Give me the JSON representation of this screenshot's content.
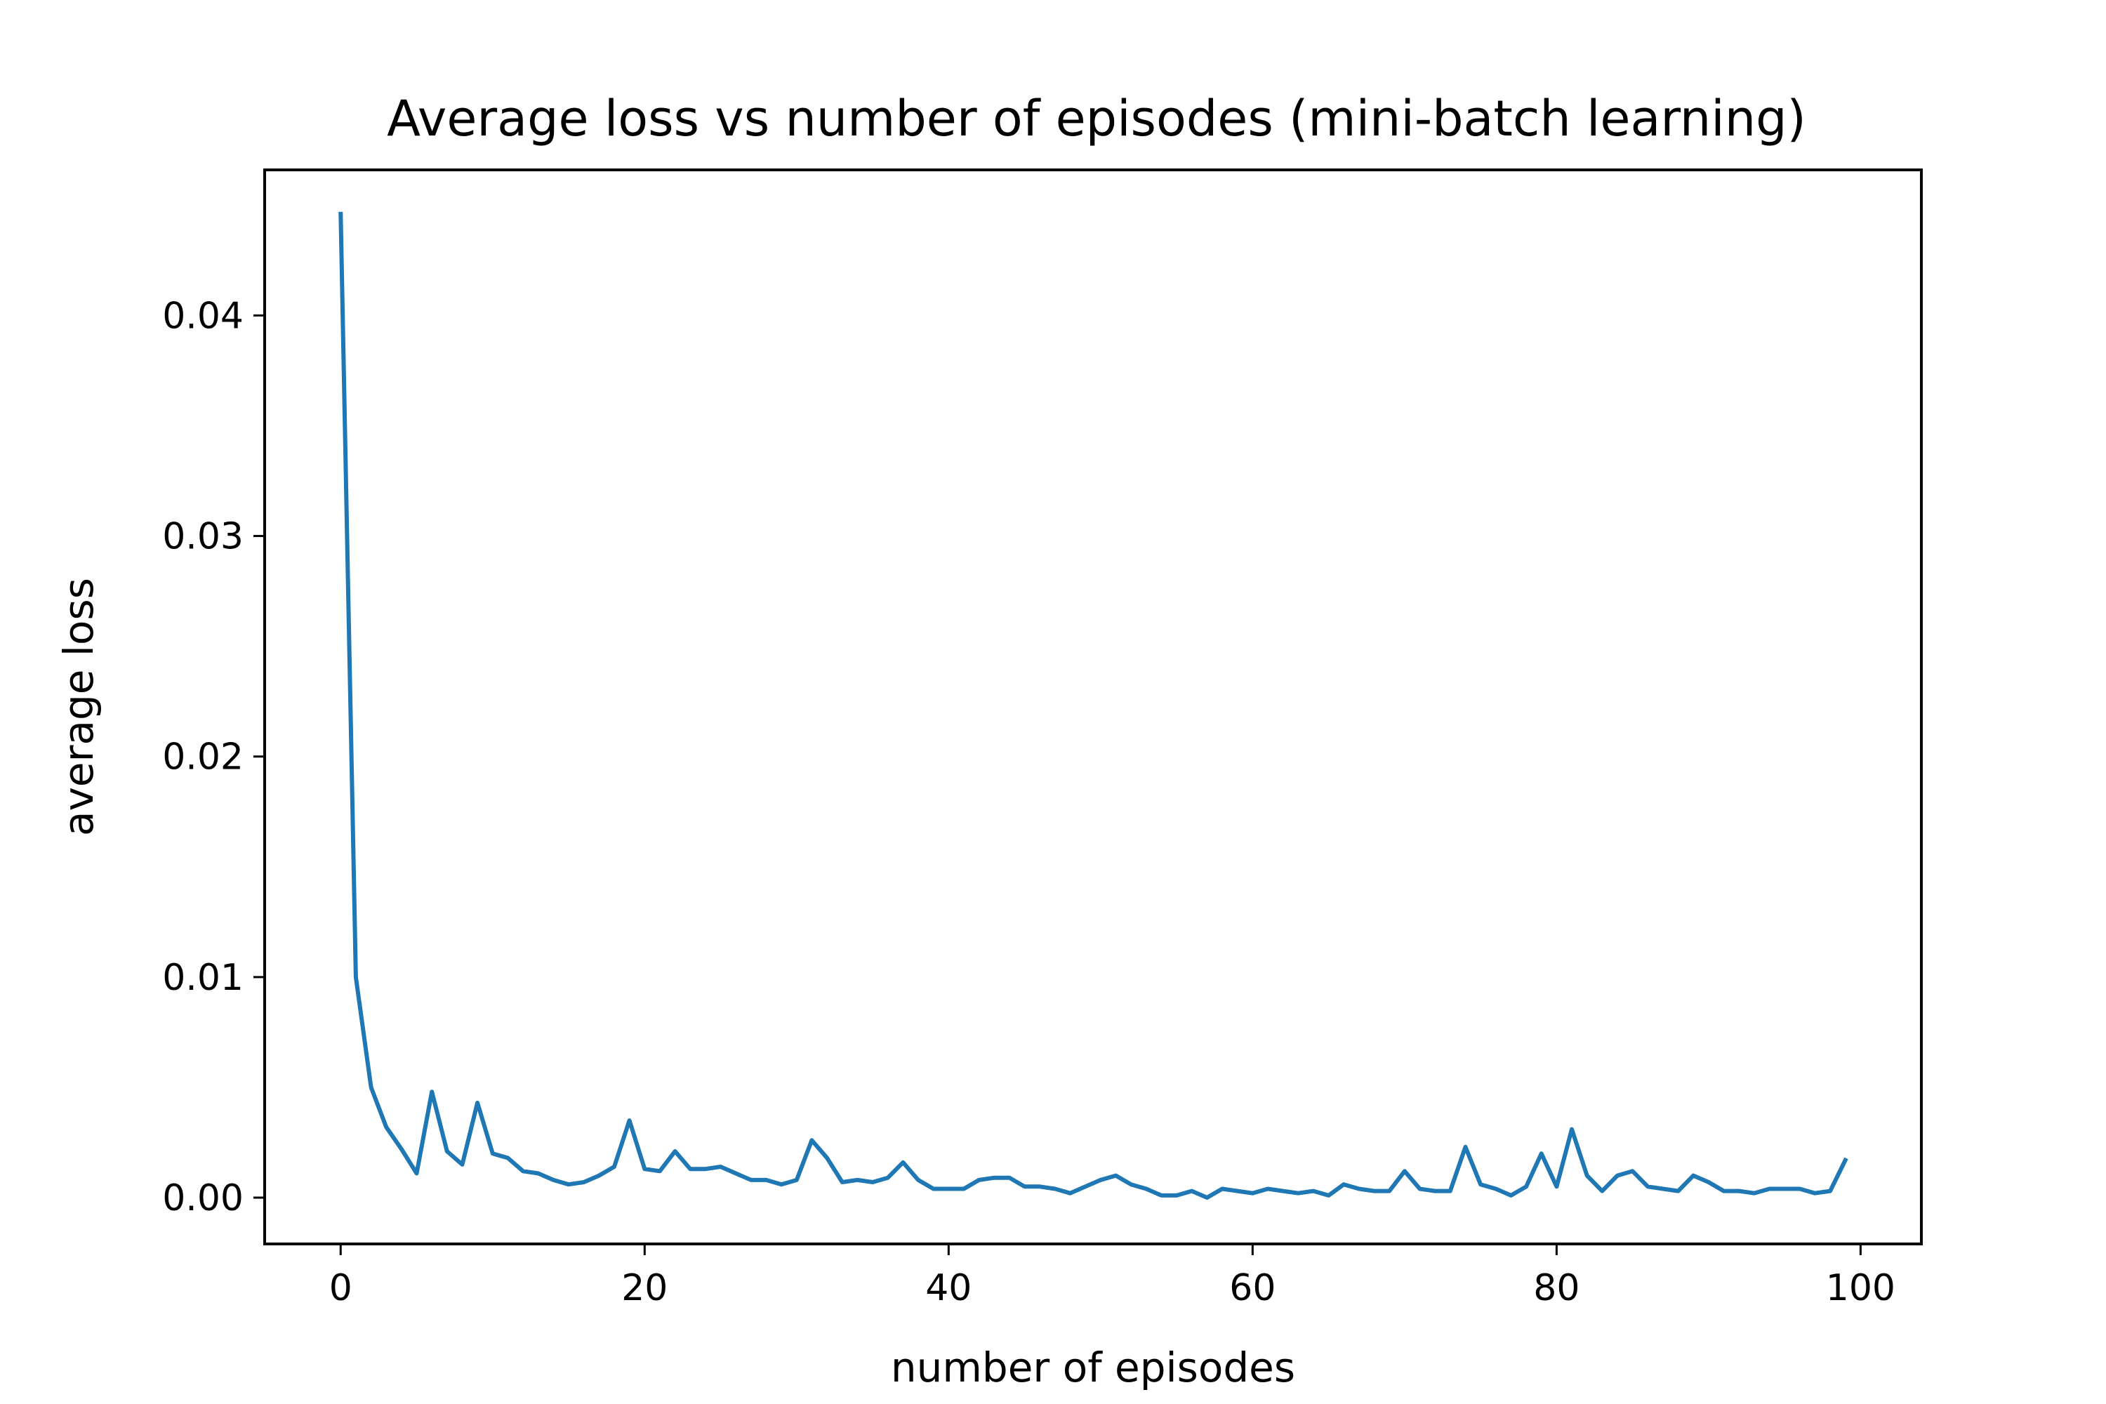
{
  "chart_data": {
    "type": "line",
    "title": "Average loss vs number of episodes (mini-batch learning)",
    "xlabel": "number of episodes",
    "ylabel": "average loss",
    "xlim": [
      -5,
      104
    ],
    "ylim": [
      -0.0021,
      0.0466
    ],
    "xticks": [
      0,
      20,
      40,
      60,
      80,
      100
    ],
    "xtick_labels": [
      "0",
      "20",
      "40",
      "60",
      "80",
      "100"
    ],
    "yticks": [
      0.0,
      0.01,
      0.02,
      0.03,
      0.04
    ],
    "ytick_labels": [
      "0.00",
      "0.01",
      "0.02",
      "0.03",
      "0.04"
    ],
    "grid": false,
    "series": [
      {
        "color": "#1f77b4",
        "x": [
          0,
          1,
          2,
          3,
          4,
          5,
          6,
          7,
          8,
          9,
          10,
          11,
          12,
          13,
          14,
          15,
          16,
          17,
          18,
          19,
          20,
          21,
          22,
          23,
          24,
          25,
          26,
          27,
          28,
          29,
          30,
          31,
          32,
          33,
          34,
          35,
          36,
          37,
          38,
          39,
          40,
          41,
          42,
          43,
          44,
          45,
          46,
          47,
          48,
          49,
          50,
          51,
          52,
          53,
          54,
          55,
          56,
          57,
          58,
          59,
          60,
          61,
          62,
          63,
          64,
          65,
          66,
          67,
          68,
          69,
          70,
          71,
          72,
          73,
          74,
          75,
          76,
          77,
          78,
          79,
          80,
          81,
          82,
          83,
          84,
          85,
          86,
          87,
          88,
          89,
          90,
          91,
          92,
          93,
          94,
          95,
          96,
          97,
          98,
          99
        ],
        "y": [
          0.0446,
          0.01,
          0.005,
          0.0032,
          0.0022,
          0.0011,
          0.0048,
          0.0021,
          0.0015,
          0.0043,
          0.002,
          0.0018,
          0.0012,
          0.0011,
          0.0008,
          0.0006,
          0.0007,
          0.001,
          0.0014,
          0.0035,
          0.0013,
          0.0012,
          0.0021,
          0.0013,
          0.0013,
          0.0014,
          0.0011,
          0.0008,
          0.0008,
          0.0006,
          0.0008,
          0.0026,
          0.0018,
          0.0007,
          0.0008,
          0.0007,
          0.0009,
          0.0016,
          0.0008,
          0.0004,
          0.0004,
          0.0004,
          0.0008,
          0.0009,
          0.0009,
          0.0005,
          0.0005,
          0.0004,
          0.0002,
          0.0005,
          0.0008,
          0.001,
          0.0006,
          0.0004,
          0.0001,
          0.0001,
          0.0003,
          0.0,
          0.0004,
          0.0003,
          0.0002,
          0.0004,
          0.0003,
          0.0002,
          0.0003,
          0.0001,
          0.0006,
          0.0004,
          0.0003,
          0.0003,
          0.0012,
          0.0004,
          0.0003,
          0.0003,
          0.0023,
          0.0006,
          0.0004,
          0.0001,
          0.0005,
          0.002,
          0.0005,
          0.0031,
          0.001,
          0.0003,
          0.001,
          0.0012,
          0.0005,
          0.0004,
          0.0003,
          0.001,
          0.0007,
          0.0003,
          0.0003,
          0.0002,
          0.0004,
          0.0004,
          0.0004,
          0.0002,
          0.0003,
          0.0017
        ]
      }
    ]
  }
}
